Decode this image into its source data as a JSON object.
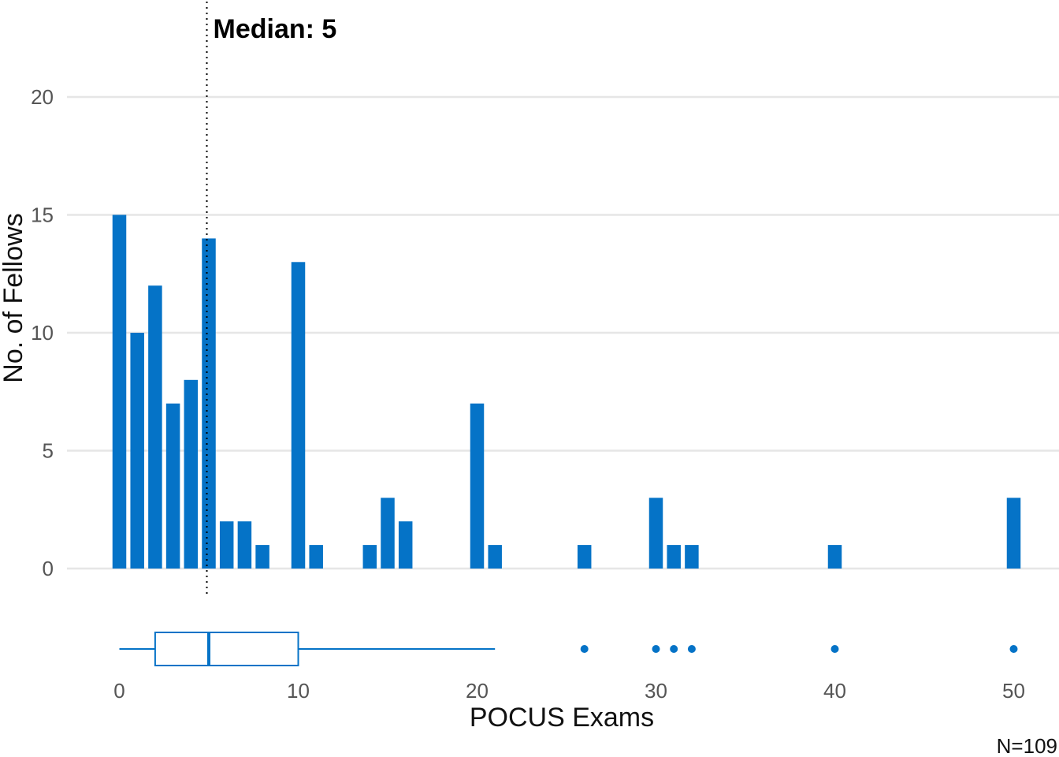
{
  "chart_data": {
    "type": "bar",
    "xlabel": "POCUS Exams",
    "ylabel": "No. of Fellows",
    "ylim": [
      0,
      21
    ],
    "xlim": [
      -0.6,
      51
    ],
    "yticks": [
      0,
      5,
      10,
      15,
      20
    ],
    "xticks": [
      0,
      10,
      20,
      30,
      40,
      50
    ],
    "grid": true,
    "bar_color": "#0573C7",
    "bars": [
      {
        "x": 0,
        "y": 15
      },
      {
        "x": 1,
        "y": 10
      },
      {
        "x": 2,
        "y": 12
      },
      {
        "x": 3,
        "y": 7
      },
      {
        "x": 4,
        "y": 8
      },
      {
        "x": 5,
        "y": 14
      },
      {
        "x": 6,
        "y": 2
      },
      {
        "x": 7,
        "y": 2
      },
      {
        "x": 8,
        "y": 1
      },
      {
        "x": 10,
        "y": 13
      },
      {
        "x": 11,
        "y": 1
      },
      {
        "x": 14,
        "y": 1
      },
      {
        "x": 15,
        "y": 3
      },
      {
        "x": 16,
        "y": 2
      },
      {
        "x": 20,
        "y": 7
      },
      {
        "x": 21,
        "y": 1
      },
      {
        "x": 26,
        "y": 1
      },
      {
        "x": 30,
        "y": 3
      },
      {
        "x": 31,
        "y": 1
      },
      {
        "x": 32,
        "y": 1
      },
      {
        "x": 40,
        "y": 1
      },
      {
        "x": 50,
        "y": 3
      }
    ],
    "median": {
      "value": 5,
      "label": "Median: 5"
    },
    "boxplot": {
      "whisker_low": 0,
      "q1": 2,
      "median": 5,
      "q3": 10,
      "whisker_high": 21,
      "outliers": [
        26,
        30,
        31,
        32,
        40,
        50
      ]
    },
    "caption": "N=109"
  }
}
